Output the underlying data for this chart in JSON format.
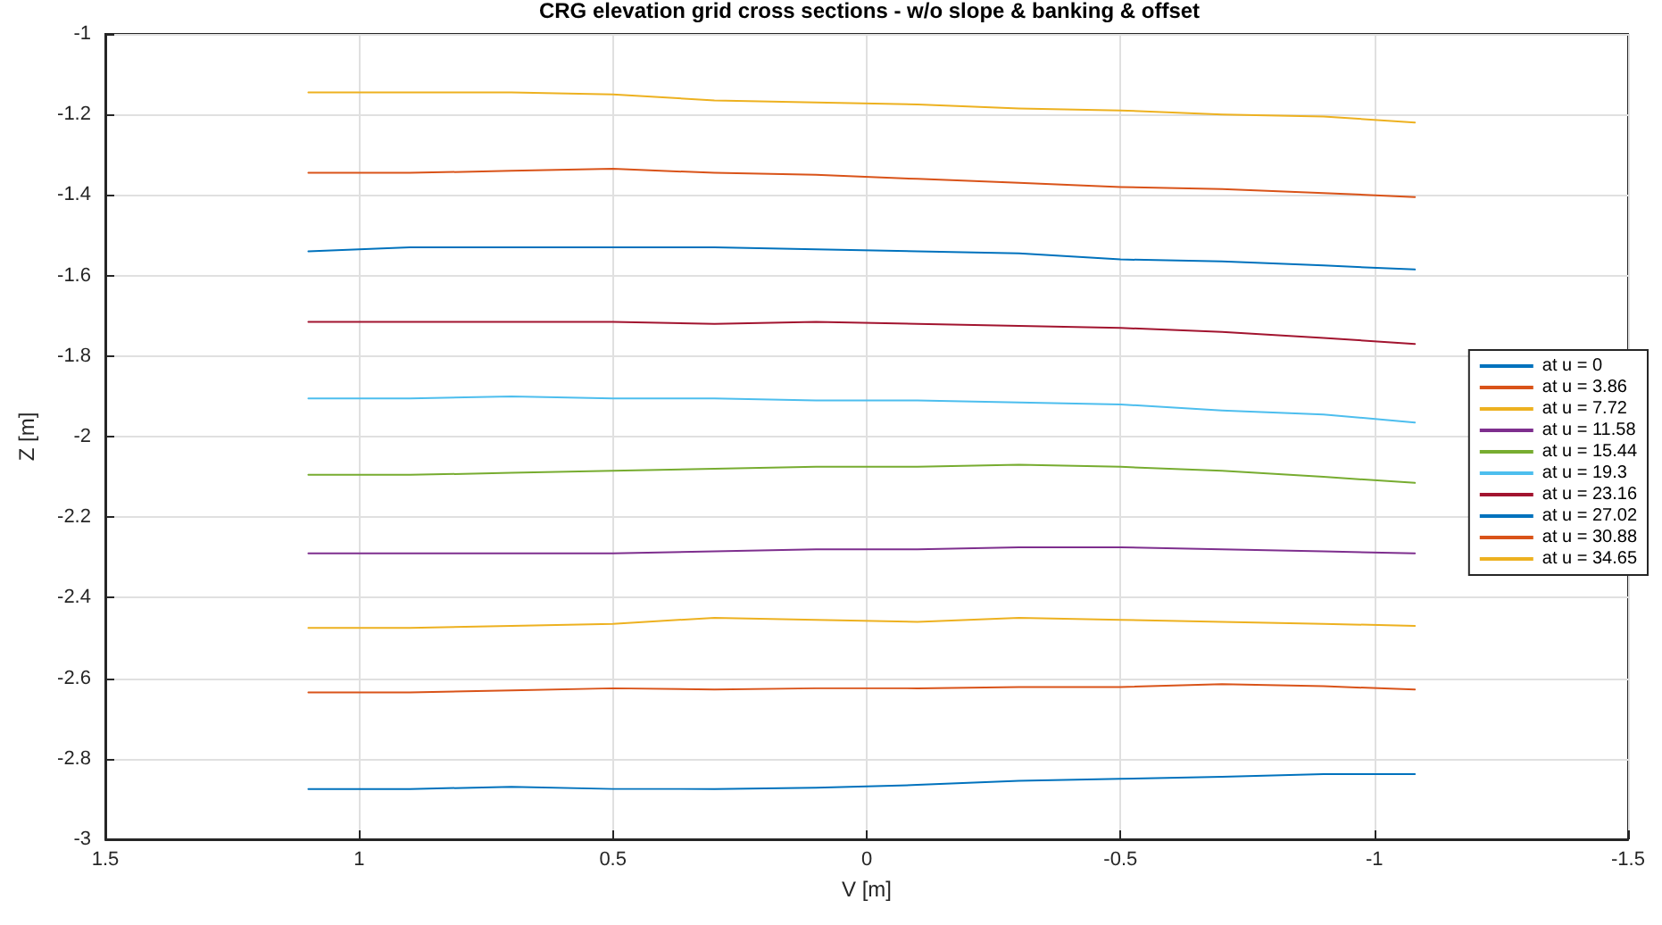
{
  "chart_data": {
    "type": "line",
    "title": "CRG elevation grid cross sections - w/o slope & banking & offset",
    "xlabel": "V [m]",
    "ylabel": "Z [m]",
    "xlim": [
      1.5,
      -1.5
    ],
    "xticks": [
      1.5,
      1,
      0.5,
      0,
      -0.5,
      -1,
      -1.5
    ],
    "ylim": [
      -3,
      -1
    ],
    "yticks": [
      -3,
      -2.8,
      -2.6,
      -2.4,
      -2.2,
      -2,
      -1.8,
      -1.6,
      -1.4,
      -1.2,
      -1
    ],
    "grid": true,
    "legend": "right",
    "marker": "none",
    "line_style": "solid",
    "x": [
      1.1,
      0.9,
      0.7,
      0.5,
      0.3,
      0.1,
      -0.1,
      -0.3,
      -0.5,
      -0.7,
      -0.9,
      -1.08
    ],
    "series": [
      {
        "name": "at u = 0",
        "color": "#0072bd",
        "values": [
          -2.875,
          -2.875,
          -2.87,
          -2.875,
          -2.875,
          -2.872,
          -2.865,
          -2.855,
          -2.85,
          -2.845,
          -2.838,
          -2.838
        ]
      },
      {
        "name": "at u = 3.86",
        "color": "#d95319",
        "values": [
          -2.635,
          -2.635,
          -2.63,
          -2.625,
          -2.628,
          -2.625,
          -2.625,
          -2.622,
          -2.622,
          -2.615,
          -2.62,
          -2.628
        ]
      },
      {
        "name": "at u = 7.72",
        "color": "#edb120",
        "values": [
          -2.475,
          -2.475,
          -2.47,
          -2.465,
          -2.45,
          -2.455,
          -2.46,
          -2.45,
          -2.455,
          -2.46,
          -2.465,
          -2.47
        ]
      },
      {
        "name": "at u = 11.58",
        "color": "#7e2f8e",
        "values": [
          -2.29,
          -2.29,
          -2.29,
          -2.29,
          -2.285,
          -2.28,
          -2.28,
          -2.275,
          -2.275,
          -2.28,
          -2.285,
          -2.29
        ]
      },
      {
        "name": "at u = 15.44",
        "color": "#77ac30",
        "values": [
          -2.095,
          -2.095,
          -2.09,
          -2.085,
          -2.08,
          -2.075,
          -2.075,
          -2.07,
          -2.075,
          -2.085,
          -2.1,
          -2.115
        ]
      },
      {
        "name": "at u = 19.3",
        "color": "#4dbeee",
        "values": [
          -1.905,
          -1.905,
          -1.9,
          -1.905,
          -1.905,
          -1.91,
          -1.91,
          -1.915,
          -1.92,
          -1.935,
          -1.945,
          -1.965
        ]
      },
      {
        "name": "at u = 23.16",
        "color": "#a2142f",
        "values": [
          -1.715,
          -1.715,
          -1.715,
          -1.715,
          -1.72,
          -1.715,
          -1.72,
          -1.725,
          -1.73,
          -1.74,
          -1.755,
          -1.77
        ]
      },
      {
        "name": "at u = 27.02",
        "color": "#0072bd",
        "values": [
          -1.54,
          -1.53,
          -1.53,
          -1.53,
          -1.53,
          -1.535,
          -1.54,
          -1.545,
          -1.56,
          -1.565,
          -1.575,
          -1.585
        ]
      },
      {
        "name": "at u = 30.88",
        "color": "#d95319",
        "values": [
          -1.345,
          -1.345,
          -1.34,
          -1.335,
          -1.345,
          -1.35,
          -1.36,
          -1.37,
          -1.38,
          -1.385,
          -1.395,
          -1.405
        ]
      },
      {
        "name": "at u = 34.65",
        "color": "#edb120",
        "values": [
          -1.145,
          -1.145,
          -1.145,
          -1.15,
          -1.165,
          -1.17,
          -1.175,
          -1.185,
          -1.19,
          -1.2,
          -1.205,
          -1.22
        ]
      }
    ]
  }
}
